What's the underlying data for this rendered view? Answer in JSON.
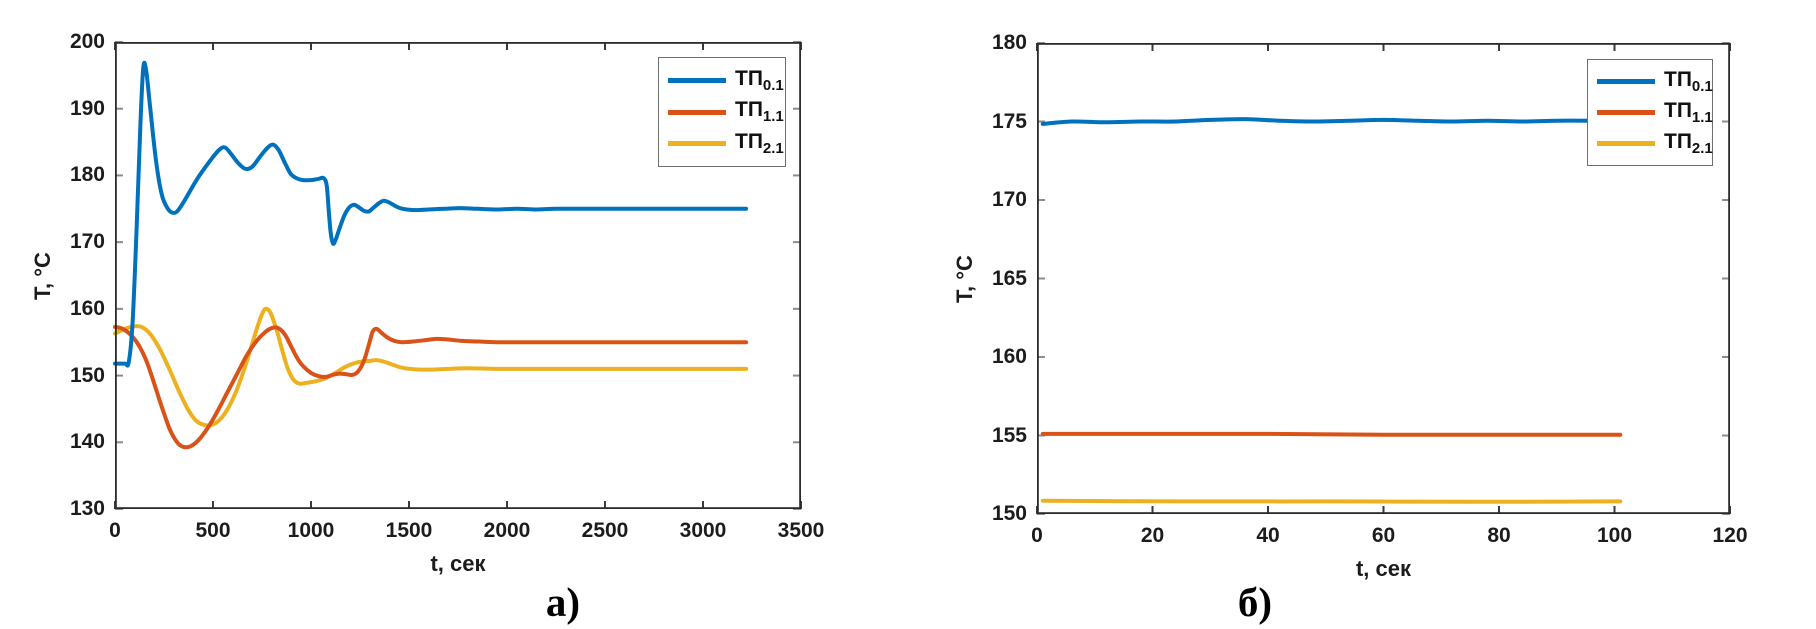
{
  "figure": {
    "caption_a": "а)",
    "caption_b": "б)"
  },
  "colors": {
    "series_blue": "#0072BD",
    "series_orange": "#D95319",
    "series_yellow": "#EDB120",
    "axis": "#2b2b2b",
    "x_tick": "#3a3a3a",
    "y_tick": "#8c8c8c",
    "tick_label": "#1c1c1c",
    "legend_border": "#6f6f6f"
  },
  "chart_data": [
    {
      "id": "plot-a",
      "type": "line",
      "xlabel": "t, сек",
      "ylabel": "T, °C",
      "xlim": [
        0,
        3500
      ],
      "ylim": [
        130,
        200
      ],
      "xticks": [
        0,
        500,
        1000,
        1500,
        2000,
        2500,
        3000,
        3500
      ],
      "yticks": [
        130,
        140,
        150,
        160,
        170,
        180,
        190,
        200
      ],
      "grid": false,
      "legend": {
        "position": "northeast",
        "entries": [
          {
            "base": "ТП",
            "sub": "0.1"
          },
          {
            "base": "ТП",
            "sub": "1.1"
          },
          {
            "base": "ТП",
            "sub": "2.1"
          }
        ]
      },
      "series": [
        {
          "name": "ТП0.1",
          "key": "tp01",
          "color_key": "series_blue",
          "z": 3,
          "points": [
            [
              0,
              151.8
            ],
            [
              50,
              151.8
            ],
            [
              70,
              152.0
            ],
            [
              90,
              158.0
            ],
            [
              110,
              172.0
            ],
            [
              130,
              188.0
            ],
            [
              145,
              196.3
            ],
            [
              160,
              195.5
            ],
            [
              180,
              190.0
            ],
            [
              210,
              182.0
            ],
            [
              240,
              177.0
            ],
            [
              270,
              175.0
            ],
            [
              295,
              174.4
            ],
            [
              320,
              174.7
            ],
            [
              360,
              176.5
            ],
            [
              420,
              179.5
            ],
            [
              480,
              182.0
            ],
            [
              530,
              183.8
            ],
            [
              560,
              184.2
            ],
            [
              590,
              183.3
            ],
            [
              630,
              181.8
            ],
            [
              665,
              181.0
            ],
            [
              700,
              181.3
            ],
            [
              740,
              182.8
            ],
            [
              780,
              184.2
            ],
            [
              808,
              184.6
            ],
            [
              835,
              183.8
            ],
            [
              865,
              182.0
            ],
            [
              895,
              180.3
            ],
            [
              925,
              179.6
            ],
            [
              960,
              179.3
            ],
            [
              1000,
              179.3
            ],
            [
              1040,
              179.5
            ],
            [
              1065,
              179.6
            ],
            [
              1080,
              178.5
            ],
            [
              1090,
              175.0
            ],
            [
              1100,
              171.5
            ],
            [
              1112,
              169.8
            ],
            [
              1125,
              170.3
            ],
            [
              1145,
              172.0
            ],
            [
              1170,
              174.0
            ],
            [
              1195,
              175.2
            ],
            [
              1220,
              175.6
            ],
            [
              1245,
              175.2
            ],
            [
              1270,
              174.7
            ],
            [
              1295,
              174.6
            ],
            [
              1320,
              175.2
            ],
            [
              1345,
              175.8
            ],
            [
              1370,
              176.2
            ],
            [
              1395,
              176.0
            ],
            [
              1425,
              175.5
            ],
            [
              1455,
              175.1
            ],
            [
              1490,
              174.9
            ],
            [
              1540,
              174.8
            ],
            [
              1600,
              174.9
            ],
            [
              1680,
              175.0
            ],
            [
              1760,
              175.1
            ],
            [
              1850,
              175.0
            ],
            [
              1950,
              174.9
            ],
            [
              2050,
              175.0
            ],
            [
              2150,
              174.9
            ],
            [
              2250,
              175.0
            ],
            [
              2400,
              175.0
            ],
            [
              2550,
              175.0
            ],
            [
              2700,
              175.0
            ],
            [
              2850,
              175.0
            ],
            [
              3000,
              175.0
            ],
            [
              3100,
              175.0
            ],
            [
              3220,
              175.0
            ]
          ]
        },
        {
          "name": "ТП1.1",
          "key": "tp11",
          "color_key": "series_orange",
          "z": 2,
          "points": [
            [
              0,
              157.3
            ],
            [
              40,
              157.0
            ],
            [
              80,
              156.1
            ],
            [
              120,
              154.6
            ],
            [
              160,
              152.2
            ],
            [
              200,
              148.8
            ],
            [
              240,
              145.2
            ],
            [
              280,
              141.9
            ],
            [
              320,
              139.9
            ],
            [
              350,
              139.3
            ],
            [
              385,
              139.4
            ],
            [
              425,
              140.3
            ],
            [
              470,
              142.0
            ],
            [
              520,
              144.5
            ],
            [
              570,
              147.3
            ],
            [
              620,
              150.1
            ],
            [
              670,
              152.9
            ],
            [
              720,
              155.1
            ],
            [
              770,
              156.6
            ],
            [
              810,
              157.2
            ],
            [
              840,
              157.0
            ],
            [
              870,
              156.0
            ],
            [
              900,
              154.3
            ],
            [
              930,
              152.6
            ],
            [
              960,
              151.4
            ],
            [
              1000,
              150.4
            ],
            [
              1040,
              149.9
            ],
            [
              1075,
              149.8
            ],
            [
              1110,
              150.1
            ],
            [
              1145,
              150.3
            ],
            [
              1180,
              150.2
            ],
            [
              1210,
              150.1
            ],
            [
              1240,
              150.6
            ],
            [
              1270,
              152.2
            ],
            [
              1295,
              154.6
            ],
            [
              1315,
              156.6
            ],
            [
              1335,
              157.0
            ],
            [
              1360,
              156.4
            ],
            [
              1390,
              155.7
            ],
            [
              1425,
              155.2
            ],
            [
              1465,
              155.0
            ],
            [
              1520,
              155.1
            ],
            [
              1580,
              155.3
            ],
            [
              1640,
              155.5
            ],
            [
              1700,
              155.4
            ],
            [
              1770,
              155.2
            ],
            [
              1850,
              155.1
            ],
            [
              1950,
              155.0
            ],
            [
              2100,
              155.0
            ],
            [
              2300,
              155.0
            ],
            [
              2500,
              155.0
            ],
            [
              2700,
              155.0
            ],
            [
              2900,
              155.0
            ],
            [
              3050,
              155.0
            ],
            [
              3220,
              155.0
            ]
          ]
        },
        {
          "name": "ТП2.1",
          "key": "tp21",
          "color_key": "series_yellow",
          "z": 1,
          "points": [
            [
              0,
              156.3
            ],
            [
              50,
              157.0
            ],
            [
              100,
              157.4
            ],
            [
              135,
              157.3
            ],
            [
              175,
              156.4
            ],
            [
              215,
              154.7
            ],
            [
              255,
              152.4
            ],
            [
              295,
              149.8
            ],
            [
              335,
              147.1
            ],
            [
              375,
              144.8
            ],
            [
              415,
              143.2
            ],
            [
              455,
              142.6
            ],
            [
              495,
              142.6
            ],
            [
              535,
              143.4
            ],
            [
              575,
              145.0
            ],
            [
              615,
              147.4
            ],
            [
              655,
              150.6
            ],
            [
              695,
              154.3
            ],
            [
              730,
              157.6
            ],
            [
              758,
              159.7
            ],
            [
              775,
              160.0
            ],
            [
              795,
              159.3
            ],
            [
              825,
              156.8
            ],
            [
              855,
              153.6
            ],
            [
              882,
              151.0
            ],
            [
              910,
              149.4
            ],
            [
              940,
              148.8
            ],
            [
              975,
              148.9
            ],
            [
              1015,
              149.1
            ],
            [
              1055,
              149.4
            ],
            [
              1095,
              149.9
            ],
            [
              1135,
              150.6
            ],
            [
              1175,
              151.3
            ],
            [
              1215,
              151.8
            ],
            [
              1255,
              152.1
            ],
            [
              1300,
              152.2
            ],
            [
              1340,
              152.3
            ],
            [
              1380,
              152.0
            ],
            [
              1420,
              151.6
            ],
            [
              1460,
              151.2
            ],
            [
              1505,
              151.0
            ],
            [
              1560,
              150.9
            ],
            [
              1620,
              150.9
            ],
            [
              1700,
              151.0
            ],
            [
              1800,
              151.1
            ],
            [
              1950,
              151.0
            ],
            [
              2150,
              151.0
            ],
            [
              2350,
              151.0
            ],
            [
              2550,
              151.0
            ],
            [
              2750,
              151.0
            ],
            [
              2950,
              151.0
            ],
            [
              3100,
              151.0
            ],
            [
              3220,
              151.0
            ]
          ]
        }
      ]
    },
    {
      "id": "plot-b",
      "type": "line",
      "xlabel": "t, сек",
      "ylabel": "T, °C",
      "xlim": [
        0,
        120
      ],
      "ylim": [
        150,
        180
      ],
      "xticks": [
        0,
        20,
        40,
        60,
        80,
        100,
        120
      ],
      "yticks": [
        150,
        155,
        160,
        165,
        170,
        175,
        180
      ],
      "grid": false,
      "legend": {
        "position": "northeast",
        "entries": [
          {
            "base": "ТП",
            "sub": "0.1"
          },
          {
            "base": "ТП",
            "sub": "1.1"
          },
          {
            "base": "ТП",
            "sub": "2.1"
          }
        ]
      },
      "series": [
        {
          "name": "ТП0.1",
          "key": "tp01",
          "color_key": "series_blue",
          "z": 3,
          "points": [
            [
              1,
              174.85
            ],
            [
              6,
              175.0
            ],
            [
              12,
              174.95
            ],
            [
              18,
              175.0
            ],
            [
              24,
              175.0
            ],
            [
              30,
              175.1
            ],
            [
              36,
              175.15
            ],
            [
              42,
              175.05
            ],
            [
              48,
              175.0
            ],
            [
              54,
              175.05
            ],
            [
              60,
              175.1
            ],
            [
              66,
              175.05
            ],
            [
              72,
              175.0
            ],
            [
              78,
              175.05
            ],
            [
              84,
              175.0
            ],
            [
              90,
              175.05
            ],
            [
              96,
              175.05
            ],
            [
              101,
              175.1
            ]
          ]
        },
        {
          "name": "ТП1.1",
          "key": "tp11",
          "color_key": "series_orange",
          "z": 2,
          "points": [
            [
              1,
              155.1
            ],
            [
              20,
              155.1
            ],
            [
              40,
              155.1
            ],
            [
              60,
              155.05
            ],
            [
              80,
              155.05
            ],
            [
              101,
              155.05
            ]
          ]
        },
        {
          "name": "ТП2.1",
          "key": "tp21",
          "color_key": "series_yellow",
          "z": 1,
          "points": [
            [
              1,
              150.85
            ],
            [
              25,
              150.8
            ],
            [
              50,
              150.8
            ],
            [
              75,
              150.78
            ],
            [
              101,
              150.8
            ]
          ]
        }
      ]
    }
  ]
}
